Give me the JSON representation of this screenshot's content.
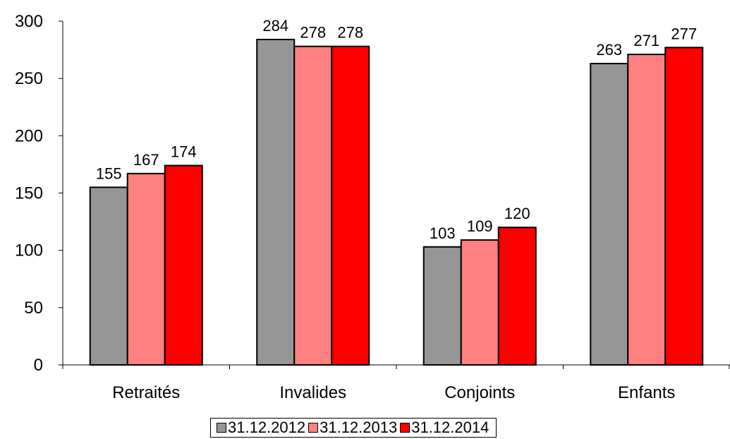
{
  "chart_data": {
    "type": "bar",
    "categories": [
      "Retraités",
      "Invalides",
      "Conjoints",
      "Enfants"
    ],
    "series": [
      {
        "name": "31.12.2012",
        "color": "#969696",
        "values": [
          155,
          284,
          103,
          263
        ]
      },
      {
        "name": "31.12.2013",
        "color": "#ff8080",
        "values": [
          167,
          278,
          109,
          271
        ]
      },
      {
        "name": "31.12.2014",
        "color": "#ff0000",
        "values": [
          174,
          278,
          120,
          277
        ]
      }
    ],
    "ylim": [
      0,
      300
    ],
    "yticks": [
      0,
      50,
      100,
      150,
      200,
      250,
      300
    ],
    "title": "",
    "xlabel": "",
    "ylabel": "",
    "grid": false,
    "legend_position": "bottom"
  }
}
